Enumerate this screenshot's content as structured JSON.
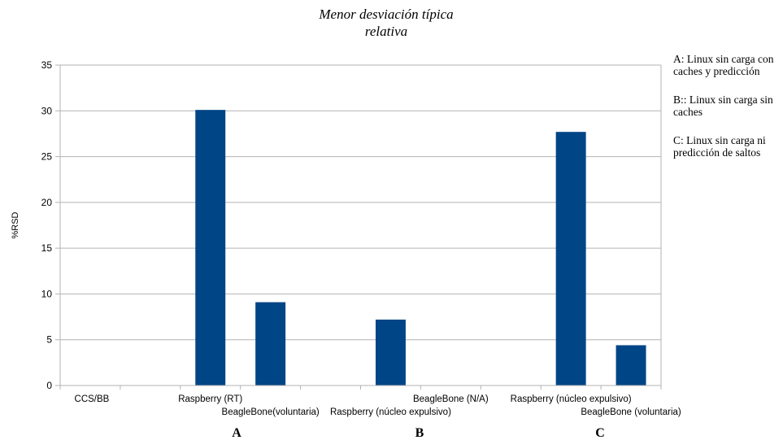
{
  "chart_data": {
    "type": "bar",
    "title_lines": [
      "Menor desviación típica",
      "relativa"
    ],
    "ylabel": "%RSD",
    "xlabel": "",
    "ylim": [
      0,
      35
    ],
    "yticks": [
      0,
      5,
      10,
      15,
      20,
      25,
      30,
      35
    ],
    "grid": "horizontal",
    "legend": "none",
    "bar_color": "#004586",
    "grid_color": "#b3b3b3",
    "categories": [
      "CCS/BB",
      "",
      "Raspberry (RT)",
      "BeagleBone(voluntaria)",
      "",
      "Raspberry (núcleo expulsivo)",
      "BeagleBone (N/A)",
      "",
      "Raspberry (núcleo expulsivo)",
      "BeagleBone (voluntaria)"
    ],
    "values": [
      0,
      0,
      30.1,
      9.1,
      0,
      7.2,
      0,
      0,
      27.7,
      4.4
    ],
    "groups": [
      {
        "label": "A"
      },
      {
        "label": "B"
      },
      {
        "label": "C"
      }
    ],
    "notes": [
      [
        "A: Linux sin carga con",
        "caches y predicción"
      ],
      [
        "B:: Linux sin carga sin",
        "caches"
      ],
      [
        "C: Linux sin carga ni",
        "predicción de saltos"
      ]
    ]
  }
}
